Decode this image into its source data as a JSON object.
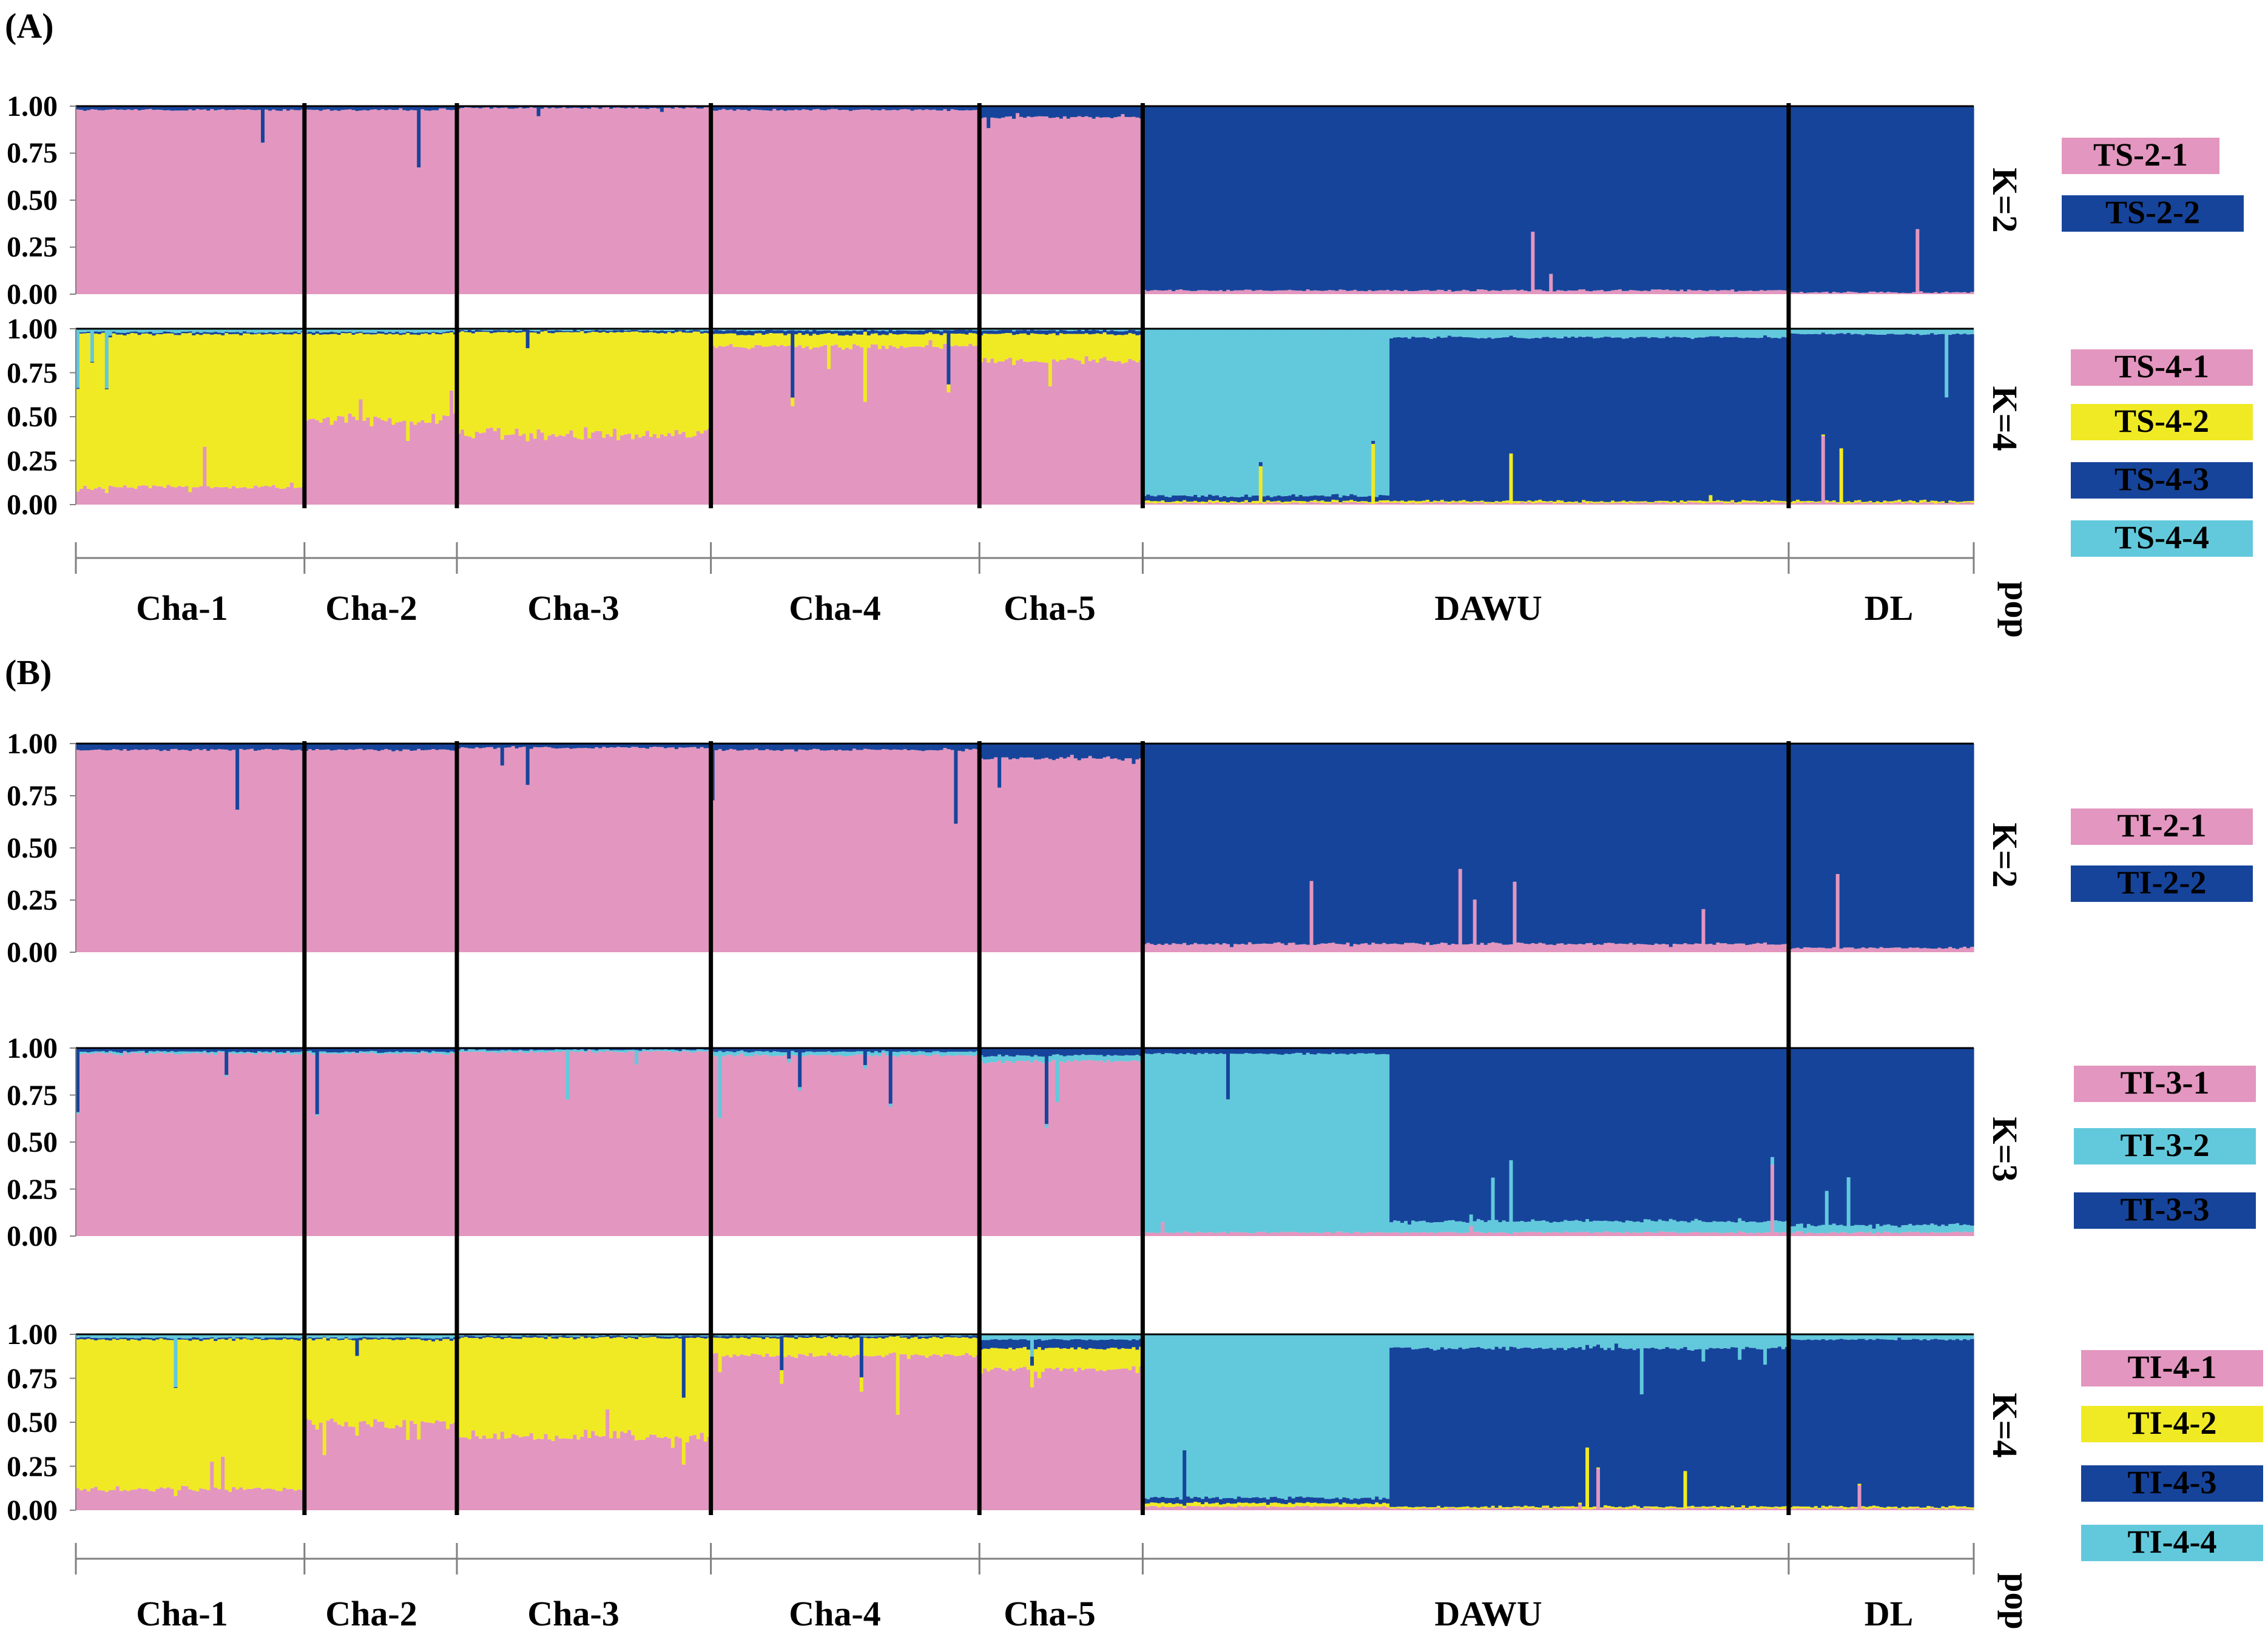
{
  "colors": {
    "pink": "#e396bf",
    "yellow": "#f0ea24",
    "navy": "#16449b",
    "cyan": "#62c9dc",
    "axis": "#808080",
    "divider": "#000000"
  },
  "chart_data": [
    {
      "type": "stacked-bar",
      "panel_label": "(A)",
      "x_label": "pop",
      "ylim": [
        0,
        1
      ],
      "ytick_labels": [
        "1.00",
        "0.75",
        "0.50",
        "0.25",
        "0.00"
      ],
      "populations": [
        {
          "name": "Cha-1",
          "samples": 63
        },
        {
          "name": "Cha-2",
          "samples": 42
        },
        {
          "name": "Cha-3",
          "samples": 70
        },
        {
          "name": "Cha-4",
          "samples": 74
        },
        {
          "name": "Cha-5",
          "samples": 45
        },
        {
          "name": "DAWU",
          "samples": 178
        },
        {
          "name": "DL",
          "samples": 51
        }
      ],
      "rows": [
        {
          "k_label": "K=2",
          "clusters": [
            {
              "name": "TS-2-1",
              "color": "pink"
            },
            {
              "name": "TS-2-2",
              "color": "navy"
            }
          ],
          "mean_membership": {
            "Cha-1": [
              0.98,
              0.02
            ],
            "Cha-2": [
              0.98,
              0.02
            ],
            "Cha-3": [
              0.99,
              0.01
            ],
            "Cha-4": [
              0.98,
              0.02
            ],
            "Cha-5": [
              0.94,
              0.06
            ],
            "DAWU": [
              0.02,
              0.98
            ],
            "DL": [
              0.01,
              0.99
            ]
          }
        },
        {
          "k_label": "K=4",
          "clusters": [
            {
              "name": "TS-4-1",
              "color": "pink"
            },
            {
              "name": "TS-4-2",
              "color": "yellow"
            },
            {
              "name": "TS-4-3",
              "color": "navy"
            },
            {
              "name": "TS-4-4",
              "color": "cyan"
            }
          ],
          "mean_membership": {
            "Cha-1": [
              0.1,
              0.87,
              0.01,
              0.02
            ],
            "Cha-2": [
              0.48,
              0.49,
              0.01,
              0.02
            ],
            "Cha-3": [
              0.4,
              0.58,
              0.01,
              0.01
            ],
            "Cha-4": [
              0.9,
              0.07,
              0.02,
              0.01
            ],
            "Cha-5": [
              0.82,
              0.15,
              0.02,
              0.01
            ],
            "DAWU-left": [
              0.01,
              0.01,
              0.03,
              0.95
            ],
            "DAWU": [
              0.01,
              0.01,
              0.93,
              0.05
            ],
            "DL": [
              0.01,
              0.01,
              0.95,
              0.03
            ]
          }
        }
      ],
      "legend": [
        {
          "label": "TS-2-1",
          "color": "pink"
        },
        {
          "label": "TS-2-2",
          "color": "navy"
        },
        {
          "label": "TS-4-1",
          "color": "pink"
        },
        {
          "label": "TS-4-2",
          "color": "yellow"
        },
        {
          "label": "TS-4-3",
          "color": "navy"
        },
        {
          "label": "TS-4-4",
          "color": "cyan"
        }
      ]
    },
    {
      "type": "stacked-bar",
      "panel_label": "(B)",
      "x_label": "pop",
      "ylim": [
        0,
        1
      ],
      "ytick_labels": [
        "1.00",
        "0.75",
        "0.50",
        "0.25",
        "0.00"
      ],
      "populations": [
        {
          "name": "Cha-1",
          "samples": 63
        },
        {
          "name": "Cha-2",
          "samples": 42
        },
        {
          "name": "Cha-3",
          "samples": 70
        },
        {
          "name": "Cha-4",
          "samples": 74
        },
        {
          "name": "Cha-5",
          "samples": 45
        },
        {
          "name": "DAWU",
          "samples": 178
        },
        {
          "name": "DL",
          "samples": 51
        }
      ],
      "rows": [
        {
          "k_label": "K=2",
          "clusters": [
            {
              "name": "TI-2-1",
              "color": "pink"
            },
            {
              "name": "TI-2-2",
              "color": "navy"
            }
          ],
          "mean_membership": {
            "Cha-1": [
              0.97,
              0.03
            ],
            "Cha-2": [
              0.97,
              0.03
            ],
            "Cha-3": [
              0.98,
              0.02
            ],
            "Cha-4": [
              0.97,
              0.03
            ],
            "Cha-5": [
              0.93,
              0.07
            ],
            "DAWU": [
              0.04,
              0.96
            ],
            "DL": [
              0.02,
              0.98
            ]
          }
        },
        {
          "k_label": "K=3",
          "clusters": [
            {
              "name": "TI-3-1",
              "color": "pink"
            },
            {
              "name": "TI-3-2",
              "color": "cyan"
            },
            {
              "name": "TI-3-3",
              "color": "navy"
            }
          ],
          "mean_membership": {
            "Cha-1": [
              0.97,
              0.01,
              0.02
            ],
            "Cha-2": [
              0.97,
              0.01,
              0.02
            ],
            "Cha-3": [
              0.98,
              0.01,
              0.01
            ],
            "Cha-4": [
              0.96,
              0.02,
              0.02
            ],
            "Cha-5": [
              0.93,
              0.03,
              0.04
            ],
            "DAWU-left": [
              0.02,
              0.95,
              0.03
            ],
            "DAWU": [
              0.02,
              0.06,
              0.92
            ],
            "DL": [
              0.02,
              0.04,
              0.94
            ]
          }
        },
        {
          "k_label": "K=4",
          "clusters": [
            {
              "name": "TI-4-1",
              "color": "pink"
            },
            {
              "name": "TI-4-2",
              "color": "yellow"
            },
            {
              "name": "TI-4-3",
              "color": "navy"
            },
            {
              "name": "TI-4-4",
              "color": "cyan"
            }
          ],
          "mean_membership": {
            "Cha-1": [
              0.12,
              0.85,
              0.01,
              0.02
            ],
            "Cha-2": [
              0.5,
              0.47,
              0.01,
              0.02
            ],
            "Cha-3": [
              0.42,
              0.56,
              0.01,
              0.01
            ],
            "Cha-4": [
              0.88,
              0.1,
              0.01,
              0.01
            ],
            "Cha-5": [
              0.8,
              0.12,
              0.05,
              0.03
            ],
            "DAWU-left": [
              0.02,
              0.02,
              0.03,
              0.93
            ],
            "DAWU": [
              0.01,
              0.01,
              0.9,
              0.08
            ],
            "DL": [
              0.01,
              0.01,
              0.95,
              0.03
            ]
          }
        }
      ],
      "legend": [
        {
          "label": "TI-2-1",
          "color": "pink"
        },
        {
          "label": "TI-2-2",
          "color": "navy"
        },
        {
          "label": "TI-3-1",
          "color": "pink"
        },
        {
          "label": "TI-3-2",
          "color": "cyan"
        },
        {
          "label": "TI-3-3",
          "color": "navy"
        },
        {
          "label": "TI-4-1",
          "color": "pink"
        },
        {
          "label": "TI-4-2",
          "color": "yellow"
        },
        {
          "label": "TI-4-3",
          "color": "navy"
        },
        {
          "label": "TI-4-4",
          "color": "cyan"
        }
      ]
    }
  ]
}
